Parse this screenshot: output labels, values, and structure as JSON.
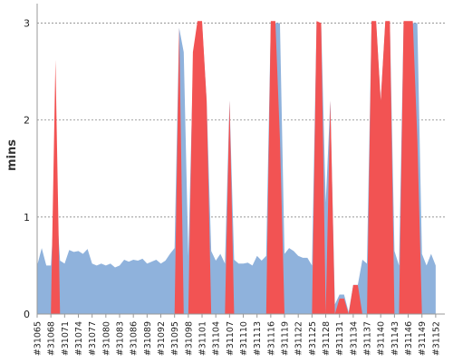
{
  "chart_data": {
    "type": "area",
    "ylabel": "mins",
    "ylim": [
      0,
      3.2
    ],
    "yticks": [
      0,
      1,
      2,
      3
    ],
    "grid": "horizontal-dashed",
    "xticks": [
      "#31065",
      "#31068",
      "#31071",
      "#31074",
      "#31077",
      "#31080",
      "#31083",
      "#31086",
      "#31089",
      "#31092",
      "#31095",
      "#31098",
      "#31101",
      "#31104",
      "#31107",
      "#31110",
      "#31113",
      "#31116",
      "#31119",
      "#31122",
      "#31125",
      "#31128",
      "#31131",
      "#31134",
      "#31137",
      "#31140",
      "#31143",
      "#31146",
      "#31149",
      "#31152"
    ],
    "x_start": 31065,
    "x_end": 31154,
    "series": [
      {
        "color": "#8fb2dc",
        "points": [
          [
            31065,
            0.5
          ],
          [
            31066,
            0.68
          ],
          [
            31067,
            0.5
          ],
          [
            31068,
            0.5
          ],
          [
            31069,
            1.3
          ],
          [
            31070,
            0.55
          ],
          [
            31071,
            0.52
          ],
          [
            31072,
            0.66
          ],
          [
            31073,
            0.64
          ],
          [
            31074,
            0.65
          ],
          [
            31075,
            0.62
          ],
          [
            31076,
            0.67
          ],
          [
            31077,
            0.52
          ],
          [
            31078,
            0.5
          ],
          [
            31079,
            0.52
          ],
          [
            31080,
            0.5
          ],
          [
            31081,
            0.52
          ],
          [
            31082,
            0.48
          ],
          [
            31083,
            0.5
          ],
          [
            31084,
            0.56
          ],
          [
            31085,
            0.54
          ],
          [
            31086,
            0.56
          ],
          [
            31087,
            0.55
          ],
          [
            31088,
            0.57
          ],
          [
            31089,
            0.52
          ],
          [
            31090,
            0.54
          ],
          [
            31091,
            0.56
          ],
          [
            31092,
            0.52
          ],
          [
            31093,
            0.55
          ],
          [
            31094,
            0.62
          ],
          [
            31095,
            0.68
          ],
          [
            31096,
            2.95
          ],
          [
            31097,
            2.7
          ],
          [
            31098,
            0.6
          ],
          [
            31099,
            2.5
          ],
          [
            31100,
            3.0
          ],
          [
            31101,
            3.0
          ],
          [
            31102,
            2.2
          ],
          [
            31103,
            0.65
          ],
          [
            31104,
            0.55
          ],
          [
            31105,
            0.62
          ],
          [
            31106,
            0.52
          ],
          [
            31107,
            2.2
          ],
          [
            31108,
            0.56
          ],
          [
            31109,
            0.52
          ],
          [
            31110,
            0.52
          ],
          [
            31111,
            0.53
          ],
          [
            31112,
            0.5
          ],
          [
            31113,
            0.6
          ],
          [
            31114,
            0.55
          ],
          [
            31115,
            0.6
          ],
          [
            31116,
            3.0
          ],
          [
            31117,
            3.0
          ],
          [
            31118,
            3.0
          ],
          [
            31119,
            0.62
          ],
          [
            31120,
            0.68
          ],
          [
            31121,
            0.65
          ],
          [
            31122,
            0.6
          ],
          [
            31123,
            0.58
          ],
          [
            31124,
            0.58
          ],
          [
            31125,
            0.5
          ],
          [
            31126,
            3.0
          ],
          [
            31127,
            3.0
          ],
          [
            31128,
            1.15
          ],
          [
            31129,
            2.2
          ],
          [
            31130,
            0.1
          ],
          [
            31131,
            0.2
          ],
          [
            31132,
            0.2
          ],
          [
            31133,
            0.02
          ],
          [
            31134,
            0.3
          ],
          [
            31135,
            0.3
          ],
          [
            31136,
            0.56
          ],
          [
            31137,
            0.52
          ],
          [
            31138,
            3.0
          ],
          [
            31139,
            3.0
          ],
          [
            31140,
            2.2
          ],
          [
            31141,
            3.0
          ],
          [
            31142,
            3.0
          ],
          [
            31143,
            0.65
          ],
          [
            31144,
            0.5
          ],
          [
            31145,
            3.0
          ],
          [
            31146,
            3.0
          ],
          [
            31147,
            3.0
          ],
          [
            31148,
            3.0
          ],
          [
            31149,
            0.62
          ],
          [
            31150,
            0.5
          ],
          [
            31151,
            0.62
          ],
          [
            31152,
            0.5
          ]
        ]
      },
      {
        "color": "#f25353",
        "points": [
          [
            31065,
            0
          ],
          [
            31066,
            0
          ],
          [
            31067,
            0
          ],
          [
            31068,
            0
          ],
          [
            31069,
            2.62
          ],
          [
            31070,
            0
          ],
          [
            31071,
            0
          ],
          [
            31072,
            0
          ],
          [
            31073,
            0
          ],
          [
            31074,
            0
          ],
          [
            31075,
            0
          ],
          [
            31076,
            0
          ],
          [
            31077,
            0
          ],
          [
            31078,
            0
          ],
          [
            31079,
            0
          ],
          [
            31080,
            0
          ],
          [
            31081,
            0
          ],
          [
            31082,
            0
          ],
          [
            31083,
            0
          ],
          [
            31084,
            0
          ],
          [
            31085,
            0
          ],
          [
            31086,
            0
          ],
          [
            31087,
            0
          ],
          [
            31088,
            0
          ],
          [
            31089,
            0
          ],
          [
            31090,
            0
          ],
          [
            31091,
            0
          ],
          [
            31092,
            0
          ],
          [
            31093,
            0
          ],
          [
            31094,
            0
          ],
          [
            31095,
            0
          ],
          [
            31096,
            2.95
          ],
          [
            31097,
            0
          ],
          [
            31098,
            0
          ],
          [
            31099,
            2.7
          ],
          [
            31100,
            3.02
          ],
          [
            31101,
            3.02
          ],
          [
            31102,
            2.2
          ],
          [
            31103,
            0
          ],
          [
            31104,
            0
          ],
          [
            31105,
            0
          ],
          [
            31106,
            0
          ],
          [
            31107,
            2.2
          ],
          [
            31108,
            0
          ],
          [
            31109,
            0
          ],
          [
            31110,
            0
          ],
          [
            31111,
            0
          ],
          [
            31112,
            0
          ],
          [
            31113,
            0
          ],
          [
            31114,
            0
          ],
          [
            31115,
            0
          ],
          [
            31116,
            3.02
          ],
          [
            31117,
            3.02
          ],
          [
            31118,
            1.8
          ],
          [
            31119,
            0
          ],
          [
            31120,
            0
          ],
          [
            31121,
            0
          ],
          [
            31122,
            0
          ],
          [
            31123,
            0
          ],
          [
            31124,
            0
          ],
          [
            31125,
            0
          ],
          [
            31126,
            3.02
          ],
          [
            31127,
            3.0
          ],
          [
            31128,
            0
          ],
          [
            31129,
            2.2
          ],
          [
            31130,
            0
          ],
          [
            31131,
            0.16
          ],
          [
            31132,
            0.16
          ],
          [
            31133,
            0
          ],
          [
            31134,
            0.3
          ],
          [
            31135,
            0.3
          ],
          [
            31136,
            0
          ],
          [
            31137,
            0
          ],
          [
            31138,
            3.02
          ],
          [
            31139,
            3.02
          ],
          [
            31140,
            2.2
          ],
          [
            31141,
            3.02
          ],
          [
            31142,
            3.02
          ],
          [
            31143,
            0
          ],
          [
            31144,
            0
          ],
          [
            31145,
            3.02
          ],
          [
            31146,
            3.02
          ],
          [
            31147,
            3.02
          ],
          [
            31148,
            1.8
          ],
          [
            31149,
            0
          ],
          [
            31150,
            0
          ],
          [
            31151,
            0
          ],
          [
            31152,
            0
          ]
        ]
      }
    ]
  }
}
